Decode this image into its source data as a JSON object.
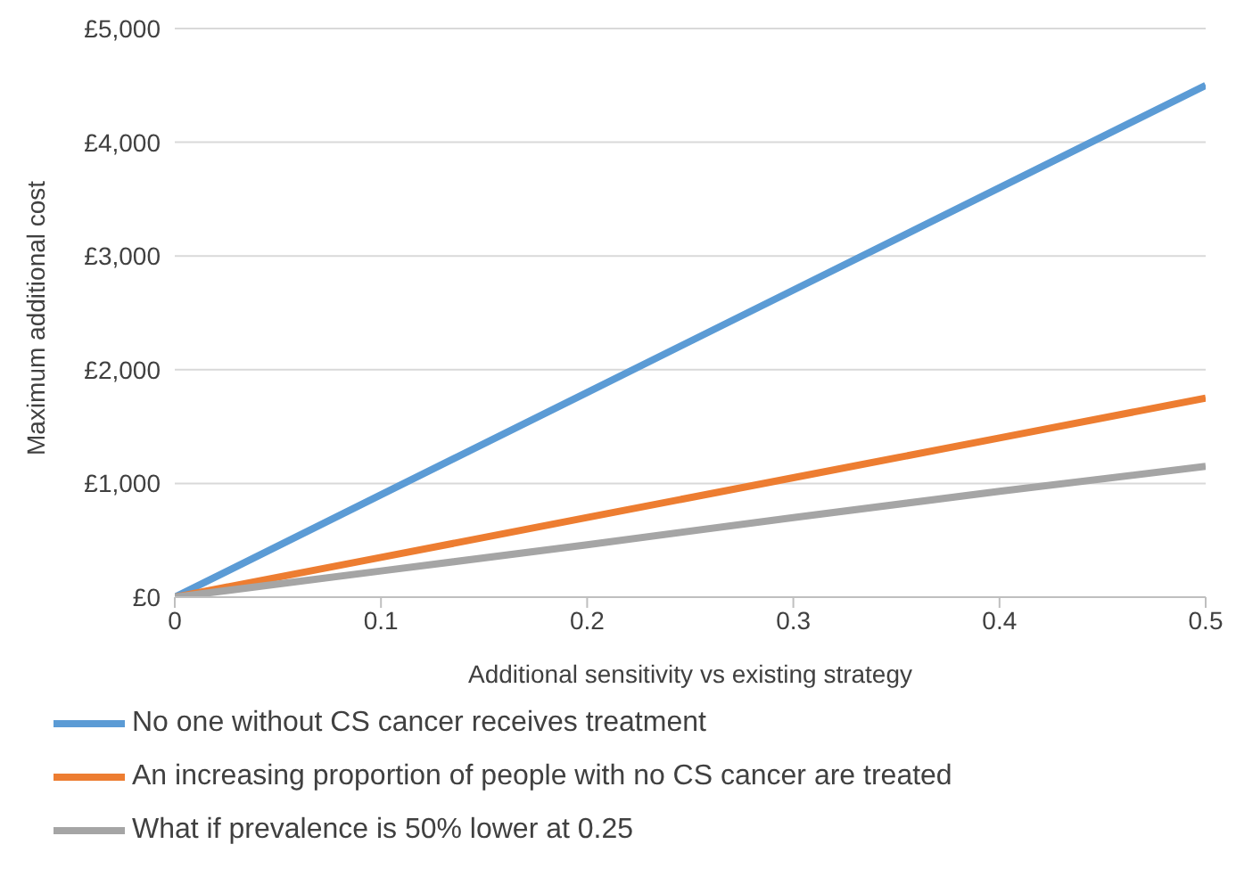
{
  "chart_data": {
    "type": "line",
    "xlabel": "Additional sensitivity vs existing strategy",
    "ylabel": "Maximum additional cost",
    "x": [
      0,
      0.1,
      0.2,
      0.3,
      0.4,
      0.5
    ],
    "series": [
      {
        "name": "No one without CS cancer receives treatment",
        "color": "#5b9bd5",
        "values": [
          0,
          900,
          1800,
          2700,
          3600,
          4500
        ]
      },
      {
        "name": "An increasing proportion of people with no CS cancer are treated",
        "color": "#ed7d31",
        "values": [
          0,
          350,
          700,
          1050,
          1400,
          1750
        ]
      },
      {
        "name": "What if prevalence is 50% lower at 0.25",
        "color": "#a5a5a5",
        "values": [
          0,
          230,
          460,
          700,
          930,
          1150
        ]
      }
    ],
    "xlim": [
      0,
      0.5
    ],
    "xticks": [
      0,
      0.1,
      0.2,
      0.3,
      0.4,
      0.5
    ],
    "ylim": [
      0,
      5000
    ],
    "yticks": [
      {
        "value": 0,
        "label": "£0"
      },
      {
        "value": 1000,
        "label": "£1,000"
      },
      {
        "value": 2000,
        "label": "£2,000"
      },
      {
        "value": 3000,
        "label": "£3,000"
      },
      {
        "value": 4000,
        "label": "£4,000"
      },
      {
        "value": 5000,
        "label": "£5,000"
      }
    ],
    "grid": "y",
    "legend": "bottom",
    "marker": "none",
    "line_style": "solid"
  }
}
